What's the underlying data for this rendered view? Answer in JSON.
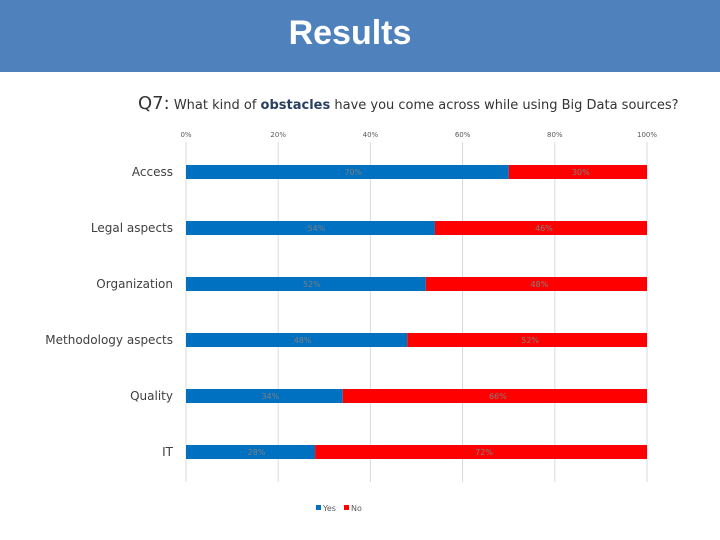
{
  "header": {
    "title": "Results",
    "background": "#4f81bd"
  },
  "question": {
    "number": "Q7:",
    "text_before": "What kind of ",
    "highlight": "obstacles",
    "text_after": " have you come across while using Big Data sources?"
  },
  "chart_data": {
    "type": "bar",
    "orientation": "horizontal",
    "stacked": true,
    "categories": [
      "Access",
      "Legal aspects",
      "Organization",
      "Methodology aspects",
      "Quality",
      "IT"
    ],
    "series": [
      {
        "name": "Yes",
        "color": "#0070c0",
        "values": [
          70,
          54,
          52,
          48,
          34,
          28
        ],
        "labels": [
          "70%",
          "54%",
          "52%",
          "48%",
          "34%",
          "28%"
        ]
      },
      {
        "name": "No",
        "color": "#ff0000",
        "values": [
          30,
          46,
          48,
          52,
          66,
          72
        ],
        "labels": [
          "30%",
          "46%",
          "48%",
          "52%",
          "66%",
          "72%"
        ]
      }
    ],
    "xticks": [
      "0%",
      "20%",
      "40%",
      "60%",
      "80%",
      "100%"
    ],
    "xlim": [
      0,
      100
    ],
    "grid": true,
    "legend": "bottom"
  }
}
